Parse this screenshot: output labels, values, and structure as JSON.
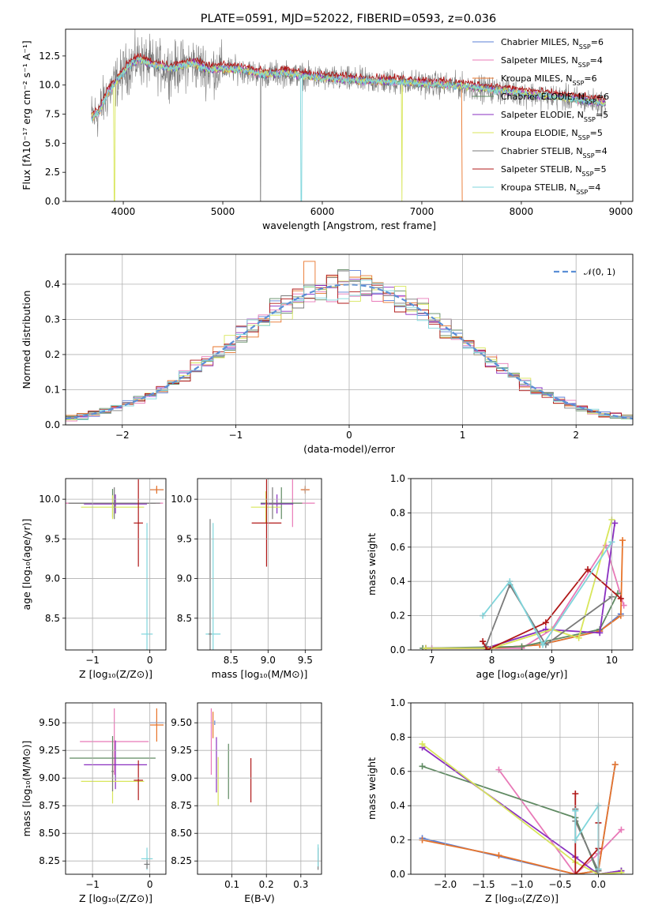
{
  "figure_title": "PLATE=0591, MJD=52022, FIBERID=0593, z=0.036",
  "colors": {
    "chabrier_miles": "#5b7fd6",
    "salpeter_miles": "#e879b7",
    "kroupa_miles": "#e8742a",
    "chabrier_elodie": "#5f8a62",
    "salpeter_elodie": "#8a2fc0",
    "kroupa_elodie": "#d8e65a",
    "chabrier_stelib": "#7a7a7a",
    "salpeter_stelib": "#b01818",
    "kroupa_stelib": "#7fd6dc",
    "gaussian": "#5b8fd6"
  },
  "chart_data": [
    {
      "id": "spectrum",
      "type": "line",
      "title": "PLATE=0591, MJD=52022, FIBERID=0593, z=0.036",
      "xlabel": "wavelength [Angstrom, rest frame]",
      "ylabel": "Flux [fλ10⁻¹⁷ erg cm⁻² s⁻¹ A⁻¹]",
      "xlim": [
        3420,
        9120
      ],
      "ylim": [
        0,
        14.8
      ],
      "xticks": [
        4000,
        5000,
        6000,
        7000,
        8000,
        9000
      ],
      "yticks": [
        0.0,
        2.5,
        5.0,
        7.5,
        10.0,
        12.5
      ],
      "grid": false,
      "legend_position": "top-right",
      "legend": [
        {
          "label": "Chabrier MILES, N",
          "sub": "SSP",
          "n": "=6",
          "color_key": "chabrier_miles"
        },
        {
          "label": "Salpeter MILES, N",
          "sub": "SSP",
          "n": "=4",
          "color_key": "salpeter_miles"
        },
        {
          "label": "Kroupa MILES, N",
          "sub": "SSP",
          "n": "=6",
          "color_key": "kroupa_miles"
        },
        {
          "label": "Chabrier ELODIE, N",
          "sub": "SSP",
          "n": "=6",
          "color_key": "chabrier_elodie"
        },
        {
          "label": "Salpeter ELODIE, N",
          "sub": "SSP",
          "n": "=5",
          "color_key": "salpeter_elodie"
        },
        {
          "label": "Kroupa ELODIE, N",
          "sub": "SSP",
          "n": "=5",
          "color_key": "kroupa_elodie"
        },
        {
          "label": "Chabrier STELIB, N",
          "sub": "SSP",
          "n": "=4",
          "color_key": "chabrier_stelib"
        },
        {
          "label": "Salpeter STELIB, N",
          "sub": "SSP",
          "n": "=5",
          "color_key": "salpeter_stelib"
        },
        {
          "label": "Kroupa STELIB, N",
          "sub": "SSP",
          "n": "=4",
          "color_key": "kroupa_stelib"
        }
      ],
      "continuum": {
        "x": [
          3680,
          3750,
          3850,
          3950,
          4050,
          4150,
          4300,
          4500,
          4700,
          4850,
          5000,
          5200,
          5400,
          5600,
          5800,
          6000,
          6300,
          6600,
          6900,
          7200,
          7400,
          7700,
          8000,
          8300,
          8600,
          8850
        ],
        "y": [
          7.2,
          7.6,
          9.4,
          10.5,
          11.6,
          12.2,
          11.7,
          11.4,
          11.9,
          11.3,
          11.4,
          11.3,
          10.9,
          11.0,
          10.8,
          10.6,
          10.4,
          10.3,
          10.2,
          10.0,
          9.9,
          9.6,
          9.3,
          9.0,
          8.7,
          8.4
        ]
      },
      "dips": [
        {
          "x": 3910,
          "y": 0.0,
          "series": "kroupa_elodie"
        },
        {
          "x": 5380,
          "y": 0.0,
          "series": "chabrier_stelib"
        },
        {
          "x": 5790,
          "y": 0.0,
          "series": "kroupa_stelib"
        },
        {
          "x": 6800,
          "y": 0.0,
          "series": "kroupa_elodie"
        },
        {
          "x": 7420,
          "y": 0.0,
          "series": "kroupa_miles"
        }
      ]
    },
    {
      "id": "residuals",
      "type": "step",
      "xlabel": "(data-model)/error",
      "ylabel": "Normed distribution",
      "xlim": [
        -2.5,
        2.5
      ],
      "ylim": [
        0,
        0.485
      ],
      "xticks": [
        -2,
        -1,
        0,
        1,
        2
      ],
      "yticks": [
        0.0,
        0.1,
        0.2,
        0.3,
        0.4
      ],
      "grid": true,
      "legend_position": "top-right",
      "legend_label": "𝒩(0, 1)",
      "gaussian": {
        "mu": 0,
        "sigma": 1
      }
    },
    {
      "id": "age_vs_Z",
      "type": "errorbar",
      "xlabel": "Z [log₁₀(Z/Z⊙)]",
      "ylabel": "age  [log₁₀(age/yr)]",
      "xlim": [
        -1.47,
        0.28
      ],
      "ylim": [
        8.1,
        10.26
      ],
      "xticks": [
        -1,
        0
      ],
      "yticks": [
        8.5,
        9.0,
        9.5,
        10.0
      ],
      "grid": true,
      "points": [
        {
          "s": "chabrier_miles",
          "x": 0.12,
          "xe": 0.12,
          "y": 10.12,
          "ye": 0.03
        },
        {
          "s": "salpeter_miles",
          "x": -0.62,
          "xe": 0.85,
          "y": 9.95,
          "ye": 0.05
        },
        {
          "s": "kroupa_miles",
          "x": 0.12,
          "xe": 0.12,
          "y": 10.12,
          "ye": 0.05
        },
        {
          "s": "chabrier_elodie",
          "x": -0.65,
          "xe": 0.75,
          "y": 9.95,
          "ye": 0.18
        },
        {
          "s": "salpeter_elodie",
          "x": -0.6,
          "xe": 0.55,
          "y": 9.94,
          "ye": 0.12
        },
        {
          "s": "kroupa_elodie",
          "x": -0.65,
          "xe": 0.55,
          "y": 9.9,
          "ye": 0.15
        },
        {
          "s": "chabrier_stelib",
          "x": -0.62,
          "xe": 0.8,
          "y": 9.95,
          "ye": 0.2
        },
        {
          "s": "salpeter_stelib",
          "x": -0.2,
          "xe": 0.08,
          "y": 9.7,
          "ye": 0.55
        },
        {
          "s": "kroupa_stelib",
          "x": -0.05,
          "xe": 0.1,
          "y": 8.3,
          "ye": 1.4
        }
      ]
    },
    {
      "id": "age_vs_mass",
      "type": "errorbar",
      "xlabel": "mass [log₁₀(M/M⊙)]",
      "ylabel": "",
      "xlim": [
        8.05,
        9.72
      ],
      "ylim": [
        8.1,
        10.26
      ],
      "xticks": [
        8.5,
        9.0,
        9.5
      ],
      "yticks": [
        8.5,
        9.0,
        9.5,
        10.0
      ],
      "grid": true,
      "points": [
        {
          "s": "chabrier_miles",
          "x": 9.5,
          "xe": 0.05,
          "y": 10.12,
          "ye": 0.03
        },
        {
          "s": "salpeter_miles",
          "x": 9.33,
          "xe": 0.3,
          "y": 9.95,
          "ye": 0.3
        },
        {
          "s": "kroupa_miles",
          "x": 9.5,
          "xe": 0.06,
          "y": 10.12,
          "ye": 0.05
        },
        {
          "s": "chabrier_elodie",
          "x": 9.18,
          "xe": 0.28,
          "y": 9.95,
          "ye": 0.2
        },
        {
          "s": "salpeter_elodie",
          "x": 9.12,
          "xe": 0.22,
          "y": 9.94,
          "ye": 0.12
        },
        {
          "s": "kroupa_elodie",
          "x": 8.97,
          "xe": 0.2,
          "y": 9.9,
          "ye": 0.2
        },
        {
          "s": "chabrier_stelib",
          "x": 9.06,
          "xe": 0.1,
          "y": 9.95,
          "ye": 0.2
        },
        {
          "s": "salpeter_stelib",
          "x": 8.98,
          "xe": 0.2,
          "y": 9.7,
          "ye": 0.55
        },
        {
          "s": "kroupa_stelib",
          "x": 8.26,
          "xe": 0.1,
          "y": 8.3,
          "ye": 1.4
        },
        {
          "s": "chabrier_stelib",
          "x": 8.22,
          "xe": 0.02,
          "y": 8.3,
          "ye": 1.45
        }
      ]
    },
    {
      "id": "massweight_vs_age",
      "type": "line",
      "xlabel": "age  [log₁₀(age/yr)]",
      "ylabel": "mass weight",
      "xlim": [
        6.65,
        10.35
      ],
      "ylim": [
        0,
        1.0
      ],
      "xticks": [
        7,
        8,
        9,
        10
      ],
      "yticks": [
        0.0,
        0.2,
        0.4,
        0.6,
        0.8,
        1.0
      ],
      "grid": true,
      "series": [
        {
          "s": "chabrier_miles",
          "x": [
            6.9,
            8.0,
            8.8,
            9.8,
            10.15
          ],
          "y": [
            0.01,
            0.01,
            0.03,
            0.11,
            0.21
          ]
        },
        {
          "s": "salpeter_miles",
          "x": [
            7.0,
            8.5,
            9.0,
            9.9,
            10.2
          ],
          "y": [
            0.01,
            0.01,
            0.12,
            0.61,
            0.26
          ]
        },
        {
          "s": "kroupa_miles",
          "x": [
            6.9,
            8.0,
            8.8,
            9.8,
            10.15,
            10.18
          ],
          "y": [
            0.01,
            0.01,
            0.03,
            0.11,
            0.2,
            0.64
          ]
        },
        {
          "s": "chabrier_elodie",
          "x": [
            6.85,
            8.5,
            9.8,
            10.1
          ],
          "y": [
            0.01,
            0.02,
            0.12,
            0.33
          ]
        },
        {
          "s": "salpeter_elodie",
          "x": [
            6.9,
            7.9,
            8.9,
            9.8,
            10.05
          ],
          "y": [
            0.01,
            0.01,
            0.12,
            0.1,
            0.74
          ]
        },
        {
          "s": "kroupa_elodie",
          "x": [
            6.9,
            8.0,
            9.0,
            9.45,
            10.0
          ],
          "y": [
            0.01,
            0.01,
            0.12,
            0.07,
            0.76
          ]
        },
        {
          "s": "chabrier_stelib",
          "x": [
            7.9,
            8.3,
            8.9,
            10.0
          ],
          "y": [
            0.02,
            0.38,
            0.03,
            0.31
          ]
        },
        {
          "s": "salpeter_stelib",
          "x": [
            7.85,
            7.92,
            8.9,
            9.6,
            10.15
          ],
          "y": [
            0.05,
            0.0,
            0.16,
            0.47,
            0.3
          ]
        },
        {
          "s": "kroupa_stelib",
          "x": [
            7.85,
            8.3,
            8.85,
            10.0
          ],
          "y": [
            0.2,
            0.4,
            0.03,
            0.63
          ]
        }
      ]
    },
    {
      "id": "mass_vs_Z",
      "type": "errorbar",
      "xlabel": "Z [log₁₀(Z/Z⊙)]",
      "ylabel": "mass [log₁₀(M/M⊙)]",
      "xlim": [
        -1.47,
        0.28
      ],
      "ylim": [
        8.13,
        9.68
      ],
      "xticks": [
        -1,
        0
      ],
      "yticks": [
        8.25,
        8.5,
        8.75,
        9.0,
        9.25,
        9.5
      ],
      "grid": true,
      "points": [
        {
          "s": "chabrier_miles",
          "x": 0.12,
          "xe": 0.12,
          "y": 9.5,
          "ye": 0.02
        },
        {
          "s": "salpeter_miles",
          "x": -0.62,
          "xe": 0.6,
          "y": 9.33,
          "ye": 0.3
        },
        {
          "s": "kroupa_miles",
          "x": 0.12,
          "xe": 0.12,
          "y": 9.48,
          "ye": 0.15
        },
        {
          "s": "chabrier_elodie",
          "x": -0.65,
          "xe": 0.75,
          "y": 9.18,
          "ye": 0.2
        },
        {
          "s": "salpeter_elodie",
          "x": -0.6,
          "xe": 0.55,
          "y": 9.12,
          "ye": 0.22
        },
        {
          "s": "kroupa_elodie",
          "x": -0.65,
          "xe": 0.55,
          "y": 8.97,
          "ye": 0.2
        },
        {
          "s": "chabrier_stelib",
          "x": -0.65,
          "xe": 0.02,
          "y": 9.06,
          "ye": 0.18
        },
        {
          "s": "salpeter_stelib",
          "x": -0.2,
          "xe": 0.08,
          "y": 8.98,
          "ye": 0.18
        },
        {
          "s": "kroupa_stelib",
          "x": -0.05,
          "xe": 0.1,
          "y": 8.27,
          "ye": 0.1
        },
        {
          "s": "chabrier_stelib",
          "x": -0.05,
          "xe": 0.05,
          "y": 8.22,
          "ye": 0.04
        }
      ]
    },
    {
      "id": "mass_vs_ebv",
      "type": "errorbar",
      "xlabel": "E(B-V)",
      "ylabel": "",
      "xlim": [
        0.0,
        0.36
      ],
      "ylim": [
        8.13,
        9.68
      ],
      "xticks": [
        0.1,
        0.2,
        0.3
      ],
      "yticks": [
        8.25,
        8.5,
        8.75,
        9.0,
        9.25,
        9.5
      ],
      "grid": true,
      "points": [
        {
          "s": "chabrier_miles",
          "x": 0.05,
          "xe": 0,
          "y": 9.5,
          "ye": 0.02
        },
        {
          "s": "salpeter_miles",
          "x": 0.04,
          "xe": 0,
          "y": 9.33,
          "ye": 0.3
        },
        {
          "s": "kroupa_miles",
          "x": 0.045,
          "xe": 0,
          "y": 9.48,
          "ye": 0.12
        },
        {
          "s": "chabrier_elodie",
          "x": 0.09,
          "xe": 0,
          "y": 9.06,
          "ye": 0.25
        },
        {
          "s": "salpeter_elodie",
          "x": 0.055,
          "xe": 0,
          "y": 9.12,
          "ye": 0.25
        },
        {
          "s": "kroupa_elodie",
          "x": 0.06,
          "xe": 0,
          "y": 8.97,
          "ye": 0.22
        },
        {
          "s": "chabrier_stelib",
          "x": 0.35,
          "xe": 0,
          "y": 8.27,
          "ye": 0.1
        },
        {
          "s": "salpeter_stelib",
          "x": 0.155,
          "xe": 0,
          "y": 8.98,
          "ye": 0.2
        },
        {
          "s": "kroupa_stelib",
          "x": 0.35,
          "xe": 0,
          "y": 8.3,
          "ye": 0.1
        }
      ]
    },
    {
      "id": "massweight_vs_Z",
      "type": "line",
      "xlabel": "Z [log₁₀(Z/Z⊙)]",
      "ylabel": "mass weight",
      "xlim": [
        -2.45,
        0.45
      ],
      "ylim": [
        0,
        1.0
      ],
      "xticks": [
        -2.0,
        -1.5,
        -1.0,
        -0.5,
        0.0
      ],
      "yticks": [
        0.0,
        0.2,
        0.4,
        0.6,
        0.8,
        1.0
      ],
      "grid": true,
      "series": [
        {
          "s": "chabrier_miles",
          "x": [
            -2.3,
            -0.3,
            0.0,
            0.22
          ],
          "y": [
            0.21,
            0.0,
            0.02,
            0.64
          ]
        },
        {
          "s": "salpeter_miles",
          "x": [
            -1.3,
            -0.3,
            0.0,
            0.3
          ],
          "y": [
            0.61,
            0.0,
            0.12,
            0.26
          ]
        },
        {
          "s": "kroupa_miles",
          "x": [
            -2.3,
            -1.3,
            -0.3,
            0.0,
            0.22
          ],
          "y": [
            0.2,
            0.11,
            0.0,
            0.02,
            0.64
          ]
        },
        {
          "s": "chabrier_elodie",
          "x": [
            -2.3,
            -0.3,
            0.0,
            0.3
          ],
          "y": [
            0.63,
            0.33,
            0.0,
            0.02
          ]
        },
        {
          "s": "salpeter_elodie",
          "x": [
            -2.3,
            -0.3,
            0.0,
            0.3
          ],
          "y": [
            0.74,
            0.1,
            0.0,
            0.02
          ]
        },
        {
          "s": "kroupa_elodie",
          "x": [
            -2.3,
            -0.3,
            0.0,
            0.3
          ],
          "y": [
            0.76,
            0.07,
            0.0,
            0.01
          ]
        },
        {
          "s": "chabrier_stelib",
          "x": [
            -0.3,
            -0.3,
            0.0,
            0.0
          ],
          "y": [
            0.38,
            0.31,
            0.02,
            0.03
          ]
        },
        {
          "s": "salpeter_stelib",
          "x": [
            -0.3,
            -0.3,
            0.0,
            0.0
          ],
          "y": [
            0.47,
            0.0,
            0.15,
            0.3
          ]
        },
        {
          "s": "kroupa_stelib",
          "x": [
            -0.3,
            -0.3,
            0.0,
            0.0
          ],
          "y": [
            0.37,
            0.2,
            0.4,
            0.03
          ]
        }
      ]
    }
  ]
}
